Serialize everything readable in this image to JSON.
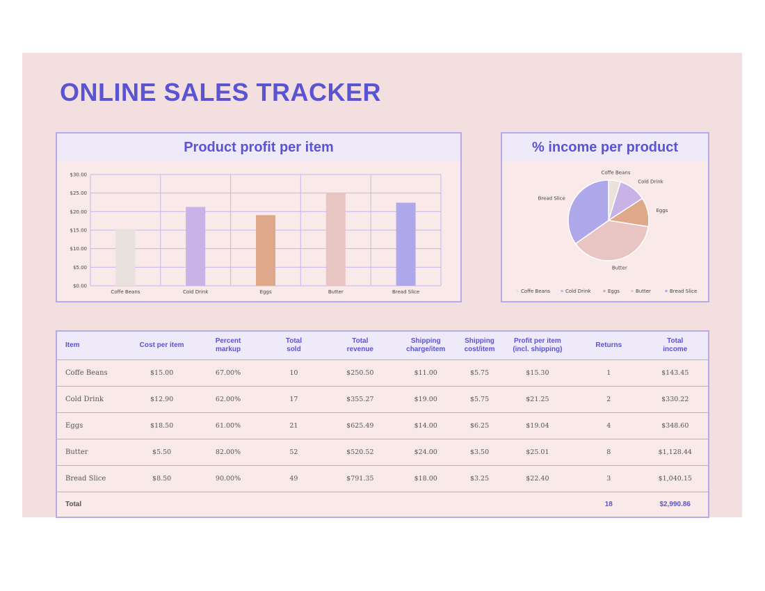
{
  "title": "ONLINE SALES TRACKER",
  "colors": {
    "accent": "#5b54d2",
    "border": "#b6aaeb",
    "sheet_bg": "#f3dfe0",
    "panel_bg": "#f9e9e9",
    "header_bg": "#eeeafa"
  },
  "bar_chart_title": "Product profit per item",
  "pie_chart_title": "% income per product",
  "chart_data": [
    {
      "type": "bar",
      "categories": [
        "Coffe Beans",
        "Cold Drink",
        "Eggs",
        "Butter",
        "Bread Slice"
      ],
      "values": [
        15.3,
        21.25,
        19.04,
        25.01,
        22.4
      ],
      "colors": [
        "#e8e1dc",
        "#c8b2e6",
        "#dea88a",
        "#e8c4c2",
        "#aea8ea"
      ],
      "yticks": [
        "$0.00",
        "$5.00",
        "$10.00",
        "$15.00",
        "$20.00",
        "$25.00",
        "$30.00"
      ],
      "ylim": [
        0,
        30
      ],
      "grid": true
    },
    {
      "type": "pie",
      "labels": [
        "Coffe Beans",
        "Cold Drink",
        "Eggs",
        "Butter",
        "Bread Slice"
      ],
      "values": [
        143.45,
        330.22,
        348.6,
        1128.44,
        1040.15
      ],
      "colors": [
        "#e8e1dc",
        "#c8b2e6",
        "#dea88a",
        "#e8c4c2",
        "#aea8ea"
      ],
      "legend": "bottom"
    }
  ],
  "table": {
    "headers": [
      [
        "Item"
      ],
      [
        "Cost per item"
      ],
      [
        "Percent",
        "markup"
      ],
      [
        "Total",
        "sold"
      ],
      [
        "Total",
        "revenue"
      ],
      [
        "Shipping",
        "charge/item"
      ],
      [
        "Shipping",
        "cost/item"
      ],
      [
        "Profit per item",
        "(incl. shipping)"
      ],
      [
        "Returns"
      ],
      [
        "Total",
        "income"
      ]
    ],
    "rows": [
      [
        "Coffe Beans",
        "$15.00",
        "67.00%",
        "10",
        "$250.50",
        "$11.00",
        "$5.75",
        "$15.30",
        "1",
        "$143.45"
      ],
      [
        "Cold Drink",
        "$12.90",
        "62.00%",
        "17",
        "$355.27",
        "$19.00",
        "$5.75",
        "$21.25",
        "2",
        "$330.22"
      ],
      [
        "Eggs",
        "$18.50",
        "61.00%",
        "21",
        "$625.49",
        "$14.00",
        "$6.25",
        "$19.04",
        "4",
        "$348.60"
      ],
      [
        "Butter",
        "$5.50",
        "82.00%",
        "52",
        "$520.52",
        "$24.00",
        "$3.50",
        "$25.01",
        "8",
        "$1,128.44"
      ],
      [
        "Bread Slice",
        "$8.50",
        "90.00%",
        "49",
        "$791.35",
        "$18.00",
        "$3.25",
        "$22.40",
        "3",
        "$1,040.15"
      ]
    ],
    "total": {
      "label": "Total",
      "returns": "18",
      "income": "$2,990.86"
    }
  }
}
